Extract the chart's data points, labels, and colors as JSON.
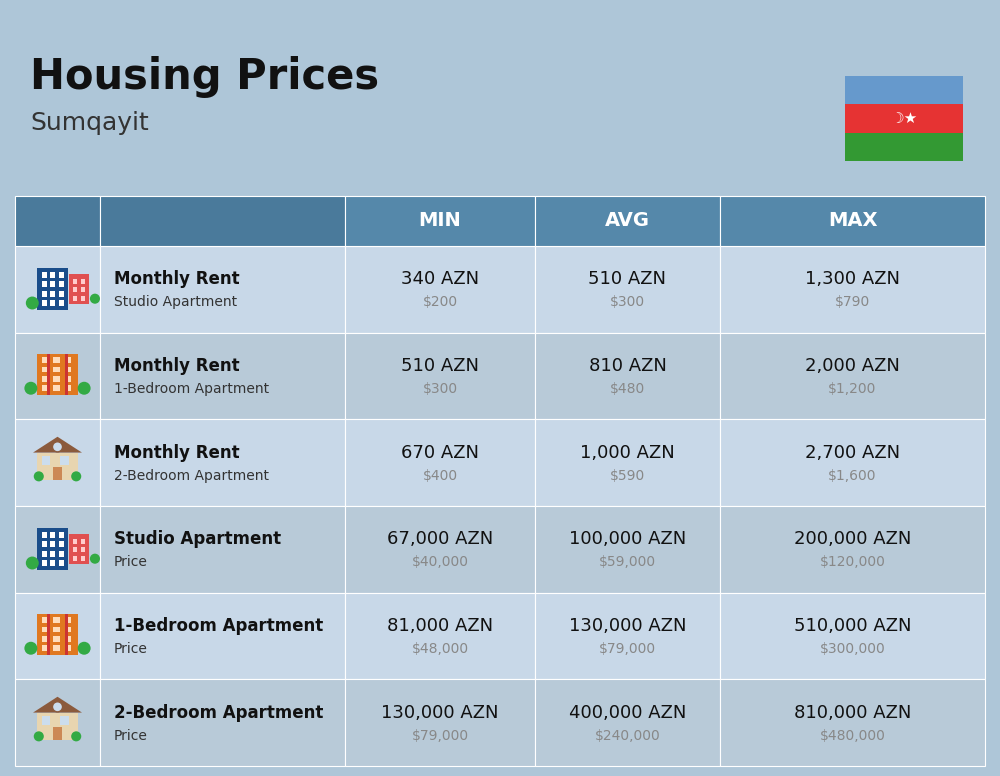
{
  "title": "Housing Prices",
  "subtitle": "Sumqayit",
  "background_color": "#aec6d8",
  "header_bg_color": "#5588aa",
  "header_dark_bg": "#4a7a9b",
  "row_bg_light": "#c8d8e8",
  "row_bg_dark": "#b8cad8",
  "col_header_labels": [
    "MIN",
    "AVG",
    "MAX"
  ],
  "rows": [
    {
      "bold_label": "Monthly Rent",
      "sub_label": "Studio Apartment",
      "min_azn": "340 AZN",
      "min_usd": "$200",
      "avg_azn": "510 AZN",
      "avg_usd": "$300",
      "max_azn": "1,300 AZN",
      "max_usd": "$790",
      "icon_type": "blue_red"
    },
    {
      "bold_label": "Monthly Rent",
      "sub_label": "1-Bedroom Apartment",
      "min_azn": "510 AZN",
      "min_usd": "$300",
      "avg_azn": "810 AZN",
      "avg_usd": "$480",
      "max_azn": "2,000 AZN",
      "max_usd": "$1,200",
      "icon_type": "orange_red"
    },
    {
      "bold_label": "Monthly Rent",
      "sub_label": "2-Bedroom Apartment",
      "min_azn": "670 AZN",
      "min_usd": "$400",
      "avg_azn": "1,000 AZN",
      "avg_usd": "$590",
      "max_azn": "2,700 AZN",
      "max_usd": "$1,600",
      "icon_type": "house_tan"
    },
    {
      "bold_label": "Studio Apartment",
      "sub_label": "Price",
      "min_azn": "67,000 AZN",
      "min_usd": "$40,000",
      "avg_azn": "100,000 AZN",
      "avg_usd": "$59,000",
      "max_azn": "200,000 AZN",
      "max_usd": "$120,000",
      "icon_type": "blue_red"
    },
    {
      "bold_label": "1-Bedroom Apartment",
      "sub_label": "Price",
      "min_azn": "81,000 AZN",
      "min_usd": "$48,000",
      "avg_azn": "130,000 AZN",
      "avg_usd": "$79,000",
      "max_azn": "510,000 AZN",
      "max_usd": "$300,000",
      "icon_type": "orange_red"
    },
    {
      "bold_label": "2-Bedroom Apartment",
      "sub_label": "Price",
      "min_azn": "130,000 AZN",
      "min_usd": "$79,000",
      "avg_azn": "400,000 AZN",
      "avg_usd": "$240,000",
      "max_azn": "810,000 AZN",
      "max_usd": "$480,000",
      "icon_type": "house_tan"
    }
  ],
  "flag_blue": "#6699cc",
  "flag_red": "#e63333",
  "flag_green": "#339933",
  "title_fontsize": 30,
  "subtitle_fontsize": 18,
  "header_fontsize": 14,
  "label_bold_fontsize": 12,
  "label_sub_fontsize": 10,
  "value_azn_fontsize": 13,
  "value_usd_fontsize": 10
}
